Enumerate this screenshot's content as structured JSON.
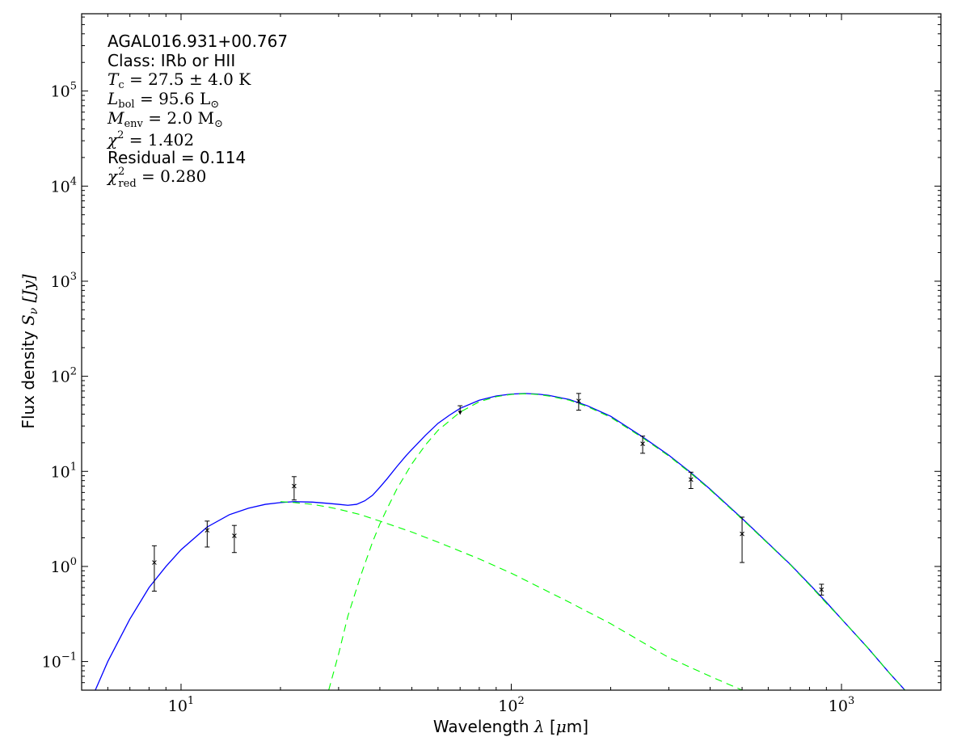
{
  "chart_data": {
    "type": "line",
    "xscale": "log",
    "yscale": "log",
    "xlim": [
      5,
      2000
    ],
    "ylim": [
      0.05,
      650000
    ],
    "xlabel_text": "Wavelength ",
    "xlabel_symbol": "λ",
    "xlabel_unit_pre": " [",
    "xlabel_unit_mu": "μ",
    "xlabel_unit_post": "m]",
    "ylabel_text": "Flux density ",
    "ylabel_symbol": "S",
    "ylabel_sub": "ν",
    "ylabel_unit": " [Jy]",
    "x_ticks": [
      {
        "value": 10,
        "base": "10",
        "exp": "1"
      },
      {
        "value": 100,
        "base": "10",
        "exp": "2"
      },
      {
        "value": 1000,
        "base": "10",
        "exp": "3"
      }
    ],
    "y_ticks": [
      {
        "value": 0.1,
        "base": "10",
        "exp": "−1"
      },
      {
        "value": 1,
        "base": "10",
        "exp": "0"
      },
      {
        "value": 10,
        "base": "10",
        "exp": "1"
      },
      {
        "value": 100,
        "base": "10",
        "exp": "2"
      },
      {
        "value": 1000,
        "base": "10",
        "exp": "3"
      },
      {
        "value": 10000,
        "base": "10",
        "exp": "4"
      },
      {
        "value": 100000,
        "base": "10",
        "exp": "5"
      }
    ],
    "annotations": {
      "source": "AGAL016.931+00.767",
      "class": "Class: IRb or HII",
      "tc": {
        "sym": "T",
        "sub": "c",
        "val": " = 27.5 ± 4.0 K"
      },
      "lbol": {
        "sym": "L",
        "sub": "bol",
        "val": " = 95.6 L",
        "tail": "⊙"
      },
      "menv": {
        "sym": "M",
        "sub": "env",
        "val": " = 2.0 M",
        "tail": "⊙"
      },
      "chi2": {
        "sym": "χ",
        "sup": "2",
        "val": " = 1.402"
      },
      "residual": "Residual = 0.114",
      "chi2red": {
        "sym": "χ",
        "sup": "2",
        "sub": "red",
        "val": " = 0.280"
      }
    },
    "series": [
      {
        "color": "#0000ff",
        "style": "solid",
        "x": [
          5.5,
          6,
          7,
          8,
          9,
          10,
          12,
          14,
          16,
          18,
          20,
          22,
          25,
          28,
          30,
          32,
          34,
          36,
          38,
          40,
          42,
          45,
          48,
          50,
          55,
          60,
          65,
          70,
          80,
          90,
          100,
          110,
          120,
          130,
          150,
          170,
          200,
          250,
          300,
          350,
          400,
          500,
          600,
          700,
          800,
          900,
          1000,
          1200,
          1400,
          1600,
          1800
        ],
        "y": [
          0.05,
          0.1,
          0.28,
          0.6,
          1.0,
          1.5,
          2.6,
          3.5,
          4.1,
          4.5,
          4.7,
          4.8,
          4.75,
          4.6,
          4.5,
          4.4,
          4.5,
          4.9,
          5.6,
          6.8,
          8.3,
          11.2,
          14.6,
          17,
          24,
          32,
          39,
          46,
          56,
          62,
          65,
          66,
          65,
          63,
          57,
          49,
          38,
          23,
          14.8,
          9.7,
          6.5,
          3.2,
          1.75,
          1.05,
          0.65,
          0.42,
          0.28,
          0.14,
          0.075,
          0.045,
          0.028
        ]
      },
      {
        "color": "#00ff00",
        "style": "dashed",
        "x": [
          20,
          22,
          25,
          28,
          30,
          35,
          40,
          50,
          60,
          80,
          100,
          150,
          200,
          300,
          400,
          500
        ],
        "y": [
          4.8,
          4.7,
          4.5,
          4.2,
          4.0,
          3.5,
          3.0,
          2.3,
          1.8,
          1.2,
          0.85,
          0.42,
          0.25,
          0.11,
          0.07,
          0.05
        ]
      },
      {
        "color": "#00ff00",
        "style": "dashed",
        "x": [
          28,
          30,
          32,
          35,
          38,
          40,
          42,
          45,
          50,
          55,
          60,
          70,
          80,
          90,
          100,
          110,
          120,
          130,
          150,
          170,
          200,
          250,
          300,
          350,
          400,
          500,
          600,
          700,
          800,
          900,
          1000,
          1200,
          1400,
          1600,
          1800
        ],
        "y": [
          0.05,
          0.12,
          0.3,
          0.8,
          1.8,
          2.8,
          4.0,
          6.5,
          12,
          19,
          27,
          42,
          54,
          61,
          64.5,
          65.5,
          64.5,
          62,
          56,
          48,
          37,
          22.5,
          14.5,
          9.5,
          6.4,
          3.15,
          1.73,
          1.04,
          0.64,
          0.41,
          0.28,
          0.14,
          0.075,
          0.045,
          0.028
        ]
      }
    ],
    "points": [
      {
        "x": 8.3,
        "y": 1.1,
        "lo": 0.55,
        "hi": 1.65,
        "upper_limit": false
      },
      {
        "x": 12,
        "y": 2.4,
        "lo": 1.6,
        "hi": 3.0,
        "upper_limit": false
      },
      {
        "x": 14.5,
        "y": 2.1,
        "lo": 1.4,
        "hi": 2.7,
        "upper_limit": false
      },
      {
        "x": 22,
        "y": 7.0,
        "lo": 5.0,
        "hi": 8.8,
        "upper_limit": false
      },
      {
        "x": 70,
        "y": 49,
        "lo": 40,
        "hi": 49,
        "upper_limit": true
      },
      {
        "x": 160,
        "y": 55,
        "lo": 44,
        "hi": 66,
        "upper_limit": false
      },
      {
        "x": 250,
        "y": 19.5,
        "lo": 15.5,
        "hi": 23.5,
        "upper_limit": false
      },
      {
        "x": 350,
        "y": 8.2,
        "lo": 6.6,
        "hi": 9.8,
        "upper_limit": false
      },
      {
        "x": 500,
        "y": 2.2,
        "lo": 1.1,
        "hi": 3.3,
        "upper_limit": false
      },
      {
        "x": 870,
        "y": 0.57,
        "lo": 0.5,
        "hi": 0.65,
        "upper_limit": false
      }
    ]
  }
}
